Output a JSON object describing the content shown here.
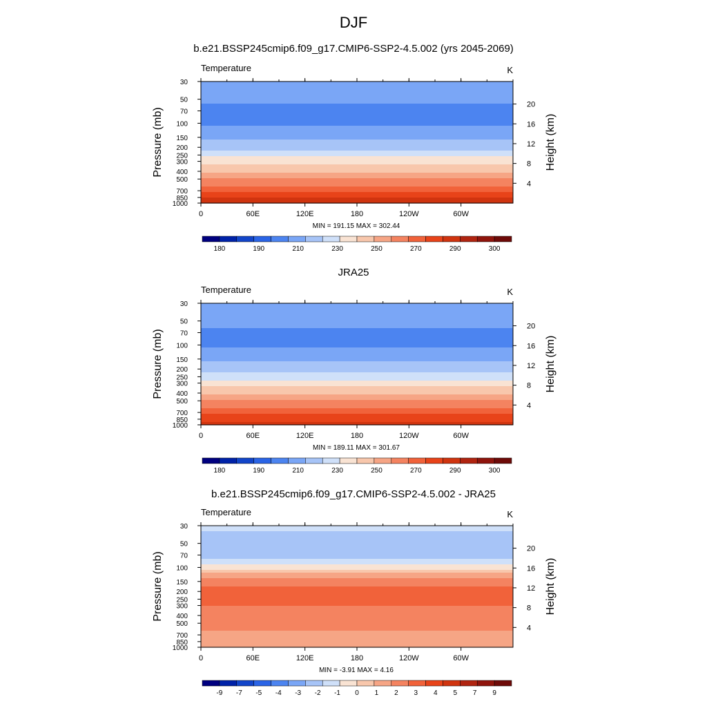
{
  "main_title": "DJF",
  "panels": [
    {
      "title": "b.e21.BSSP245cmip6.f09_g17.CMIP6-SSP2-4.5.002 (yrs 2045-2069)",
      "left_label": "Temperature",
      "right_label": "K",
      "stats": "MIN = 191.15  MAX = 302.44",
      "y_title": "Pressure (mb)",
      "y2_title": "Height (km)"
    },
    {
      "title": "JRA25",
      "left_label": "Temperature",
      "right_label": "K",
      "stats": "MIN = 189.11  MAX = 301.67",
      "y_title": "Pressure (mb)",
      "y2_title": "Height (km)"
    },
    {
      "title": "b.e21.BSSP245cmip6.f09_g17.CMIP6-SSP2-4.5.002 - JRA25",
      "left_label": "Temperature",
      "right_label": "K",
      "stats": "MIN =  -3.91  MAX =   4.16",
      "y_title": "Pressure (mb)",
      "y2_title": "Height (km)"
    }
  ],
  "chart_data": [
    {
      "type": "heatmap",
      "title": "b.e21.BSSP245cmip6.f09_g17.CMIP6-SSP2-4.5.002 (yrs 2045-2069)",
      "ylabel": "Pressure (mb)",
      "y2label": "Height (km)",
      "x_ticks": [
        "0",
        "60E",
        "120E",
        "180",
        "120W",
        "60W"
      ],
      "y_ticks": [
        "30",
        "50",
        "70",
        "100",
        "150",
        "200",
        "250",
        "300",
        "400",
        "500",
        "700",
        "850",
        "1000"
      ],
      "y2_ticks": [
        "20",
        "16",
        "12",
        "8",
        "4"
      ],
      "y_scale": "log",
      "ylim": [
        1000,
        30
      ],
      "units": "K",
      "min": 191.15,
      "max": 302.44,
      "colorbar_labels": [
        "180",
        "190",
        "210",
        "230",
        "250",
        "270",
        "290",
        "300"
      ],
      "colorbar_colors": [
        "#00007f",
        "#0022a8",
        "#1245c9",
        "#2a64e6",
        "#4c84f0",
        "#7aa6f6",
        "#a7c4f7",
        "#cfe0f9",
        "#f9e3d3",
        "#f8c7ac",
        "#f6a585",
        "#f48360",
        "#f1623a",
        "#e84319",
        "#d0340f",
        "#b02410",
        "#8f140c",
        "#6e0a08"
      ],
      "profile": [
        {
          "p": 30,
          "value": 213
        },
        {
          "p": 50,
          "value": 206
        },
        {
          "p": 70,
          "value": 203
        },
        {
          "p": 100,
          "value": 204
        },
        {
          "p": 150,
          "value": 212
        },
        {
          "p": 200,
          "value": 220
        },
        {
          "p": 250,
          "value": 229
        },
        {
          "p": 300,
          "value": 236
        },
        {
          "p": 400,
          "value": 248
        },
        {
          "p": 500,
          "value": 258
        },
        {
          "p": 700,
          "value": 273
        },
        {
          "p": 850,
          "value": 282
        },
        {
          "p": 1000,
          "value": 292
        }
      ]
    },
    {
      "type": "heatmap",
      "title": "JRA25",
      "ylabel": "Pressure (mb)",
      "y2label": "Height (km)",
      "x_ticks": [
        "0",
        "60E",
        "120E",
        "180",
        "120W",
        "60W"
      ],
      "y_ticks": [
        "30",
        "50",
        "70",
        "100",
        "150",
        "200",
        "250",
        "300",
        "400",
        "500",
        "700",
        "850",
        "1000"
      ],
      "y2_ticks": [
        "20",
        "16",
        "12",
        "8",
        "4"
      ],
      "y_scale": "log",
      "ylim": [
        1000,
        30
      ],
      "units": "K",
      "min": 189.11,
      "max": 301.67,
      "colorbar_labels": [
        "180",
        "190",
        "210",
        "230",
        "250",
        "270",
        "290",
        "300"
      ],
      "colorbar_colors": [
        "#00007f",
        "#0022a8",
        "#1245c9",
        "#2a64e6",
        "#4c84f0",
        "#7aa6f6",
        "#a7c4f7",
        "#cfe0f9",
        "#f9e3d3",
        "#f8c7ac",
        "#f6a585",
        "#f48360",
        "#f1623a",
        "#e84319",
        "#d0340f",
        "#b02410",
        "#8f140c",
        "#6e0a08"
      ],
      "profile": [
        {
          "p": 30,
          "value": 214
        },
        {
          "p": 50,
          "value": 207
        },
        {
          "p": 70,
          "value": 204
        },
        {
          "p": 100,
          "value": 203
        },
        {
          "p": 150,
          "value": 211
        },
        {
          "p": 200,
          "value": 219
        },
        {
          "p": 250,
          "value": 228
        },
        {
          "p": 300,
          "value": 235
        },
        {
          "p": 400,
          "value": 247
        },
        {
          "p": 500,
          "value": 257
        },
        {
          "p": 700,
          "value": 272
        },
        {
          "p": 850,
          "value": 281
        },
        {
          "p": 1000,
          "value": 290
        }
      ]
    },
    {
      "type": "heatmap",
      "title": "b.e21.BSSP245cmip6.f09_g17.CMIP6-SSP2-4.5.002 - JRA25",
      "ylabel": "Pressure (mb)",
      "y2label": "Height (km)",
      "x_ticks": [
        "0",
        "60E",
        "120E",
        "180",
        "120W",
        "60W"
      ],
      "y_ticks": [
        "30",
        "50",
        "70",
        "100",
        "150",
        "200",
        "250",
        "300",
        "400",
        "500",
        "700",
        "850",
        "1000"
      ],
      "y2_ticks": [
        "20",
        "16",
        "12",
        "8",
        "4"
      ],
      "y_scale": "log",
      "ylim": [
        1000,
        30
      ],
      "units": "K",
      "min": -3.91,
      "max": 4.16,
      "colorbar_labels": [
        "-9",
        "-7",
        "-5",
        "-4",
        "-3",
        "-2",
        "-1",
        "0",
        "1",
        "2",
        "3",
        "4",
        "5",
        "7",
        "9"
      ],
      "colorbar_colors": [
        "#00007f",
        "#0022a8",
        "#1245c9",
        "#2a64e6",
        "#4c84f0",
        "#7aa6f6",
        "#a7c4f7",
        "#cfe0f9",
        "#f9e3d3",
        "#f8c7ac",
        "#f6a585",
        "#f48360",
        "#f1623a",
        "#e84319",
        "#d0340f",
        "#b02410",
        "#8f140c",
        "#6e0a08"
      ],
      "profile": [
        {
          "p": 30,
          "value": -1.5
        },
        {
          "p": 50,
          "value": -2.5
        },
        {
          "p": 70,
          "value": -2.5
        },
        {
          "p": 100,
          "value": -0.5
        },
        {
          "p": 150,
          "value": 2.5
        },
        {
          "p": 200,
          "value": 2.8
        },
        {
          "p": 250,
          "value": 2.8
        },
        {
          "p": 300,
          "value": 2.6
        },
        {
          "p": 400,
          "value": 2.2
        },
        {
          "p": 500,
          "value": 2.2
        },
        {
          "p": 700,
          "value": 1.5
        },
        {
          "p": 850,
          "value": 1.2
        },
        {
          "p": 1000,
          "value": 1.5
        }
      ]
    }
  ]
}
